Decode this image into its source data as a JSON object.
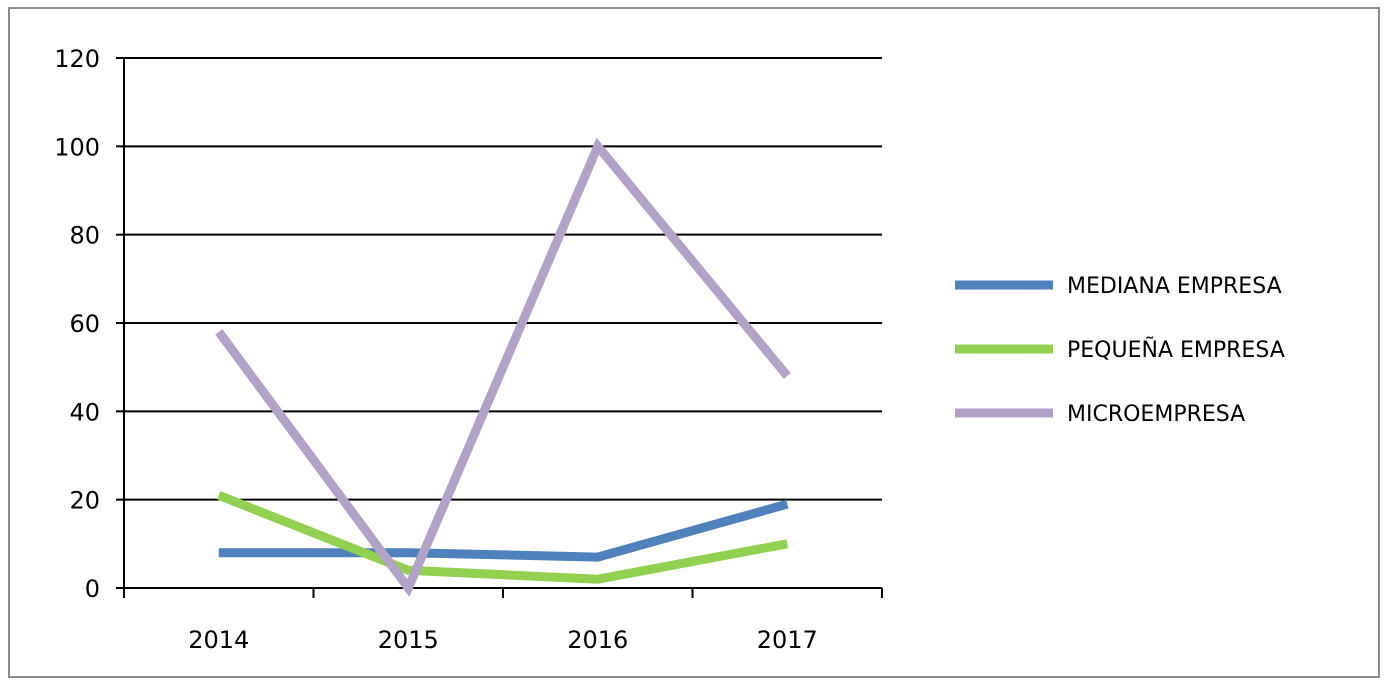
{
  "chart_data": {
    "type": "line",
    "title": "",
    "xlabel": "",
    "ylabel": "",
    "categories": [
      "2014",
      "2015",
      "2016",
      "2017"
    ],
    "ylim": [
      0,
      120
    ],
    "yticks": [
      "0",
      "20",
      "40",
      "60",
      "80",
      "100",
      "120"
    ],
    "grid": true,
    "legend_position": "right",
    "series": [
      {
        "name": "MEDIANA EMPRESA",
        "color": "#4f81bd",
        "values": [
          8,
          8,
          7,
          19
        ]
      },
      {
        "name": "PEQUEÑA EMPRESA",
        "color": "#92d050",
        "values": [
          21,
          4,
          2,
          10
        ]
      },
      {
        "name": "MICROEMPRESA",
        "color": "#b3a2c7",
        "values": [
          58,
          0,
          100,
          48
        ]
      }
    ]
  }
}
